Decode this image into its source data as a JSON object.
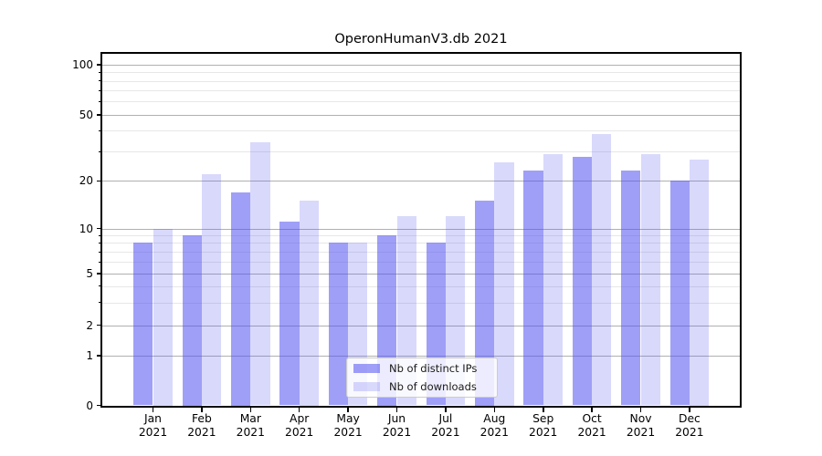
{
  "chart_data": {
    "type": "bar",
    "title": "OperonHumanV3.db 2021",
    "categories": [
      "Jan 2021",
      "Feb 2021",
      "Mar 2021",
      "Apr 2021",
      "May 2021",
      "Jun 2021",
      "Jul 2021",
      "Aug 2021",
      "Sep 2021",
      "Oct 2021",
      "Nov 2021",
      "Dec 2021"
    ],
    "series": [
      {
        "name": "Nb of distinct IPs",
        "color": "#5050f0",
        "opacity": 0.55,
        "composite_hex_on_white": "#9f9ff7",
        "values": [
          8,
          9,
          17,
          11,
          8,
          9,
          8,
          15,
          23,
          28,
          23,
          20
        ]
      },
      {
        "name": "Nb of downloads",
        "color": "#5050f0",
        "opacity": 0.22,
        "composite_hex_on_white": "#d9d9fc",
        "values": [
          10,
          22,
          34,
          15,
          8,
          12,
          12,
          26,
          29,
          38,
          29,
          27
        ]
      }
    ],
    "xlabel": "",
    "ylabel": "",
    "yscale": "symlog",
    "yticks": [
      0,
      1,
      2,
      5,
      10,
      20,
      50,
      100
    ],
    "y_minor_ticks": [
      3,
      4,
      6,
      7,
      8,
      9,
      30,
      40,
      60,
      70,
      80,
      90
    ],
    "ylim": [
      0,
      116
    ],
    "grid": true,
    "grid_major_color": "#b0b0b0",
    "grid_minor_color": "#e7e7e7",
    "legend_position": "lower center"
  }
}
